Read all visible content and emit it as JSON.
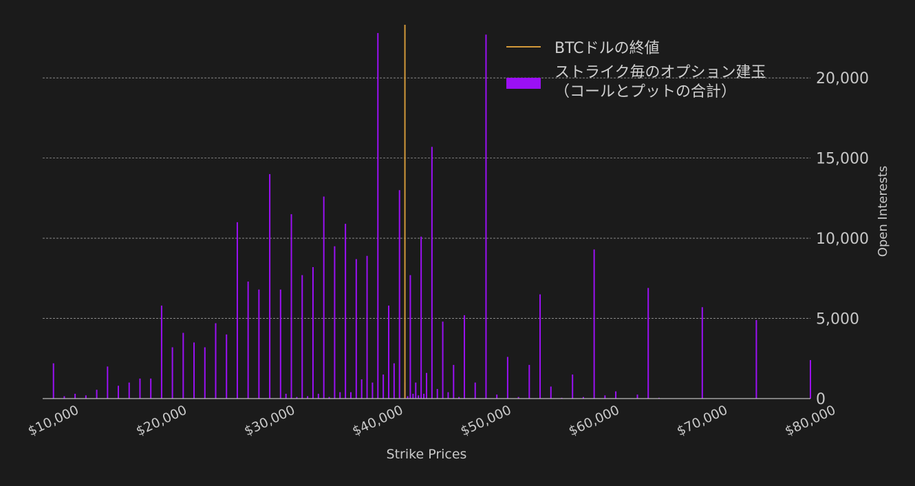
{
  "chart_data": {
    "type": "bar",
    "xlabel": "Strike Prices",
    "ylabel": "Open Interests",
    "xlim": [
      9000,
      80000
    ],
    "ylim": [
      0,
      24000
    ],
    "x_ticks": [
      10000,
      20000,
      30000,
      40000,
      50000,
      60000,
      70000,
      80000
    ],
    "x_tick_labels": [
      "$10,000",
      "$20,000",
      "$30,000",
      "$40,000",
      "$50,000",
      "$60,000",
      "$70,000",
      "$80,000"
    ],
    "y_ticks": [
      0,
      5000,
      10000,
      15000,
      20000
    ],
    "y_tick_labels": [
      "0",
      "5,000",
      "10,000",
      "15,000",
      "20,000"
    ],
    "y_axis_side": "right",
    "grid": "horizontal-dashed",
    "legend_position": "top-right",
    "legend": {
      "line_label": "BTCドルの終値",
      "bar_label_line1": "ストライク毎のオプション建玉",
      "bar_label_line2": "（コールとプットの合計）"
    },
    "reference_line": {
      "x": 42500,
      "color": "#d49a3a"
    },
    "bar_color": "#9b10f5",
    "line_color": "#d49a3a",
    "background": "#1b1b1b",
    "bars": [
      {
        "x": 10000,
        "y": 2200
      },
      {
        "x": 11000,
        "y": 150
      },
      {
        "x": 12000,
        "y": 300
      },
      {
        "x": 13000,
        "y": 200
      },
      {
        "x": 14000,
        "y": 550
      },
      {
        "x": 15000,
        "y": 2000
      },
      {
        "x": 16000,
        "y": 800
      },
      {
        "x": 17000,
        "y": 1000
      },
      {
        "x": 18000,
        "y": 1250
      },
      {
        "x": 19000,
        "y": 1250
      },
      {
        "x": 20000,
        "y": 5800
      },
      {
        "x": 21000,
        "y": 3200
      },
      {
        "x": 22000,
        "y": 4100
      },
      {
        "x": 23000,
        "y": 3500
      },
      {
        "x": 24000,
        "y": 3200
      },
      {
        "x": 25000,
        "y": 4700
      },
      {
        "x": 26000,
        "y": 4000
      },
      {
        "x": 27000,
        "y": 11000
      },
      {
        "x": 28000,
        "y": 7300
      },
      {
        "x": 29000,
        "y": 6800
      },
      {
        "x": 30000,
        "y": 14000
      },
      {
        "x": 31000,
        "y": 6800
      },
      {
        "x": 31500,
        "y": 300
      },
      {
        "x": 32000,
        "y": 11500
      },
      {
        "x": 32500,
        "y": 100
      },
      {
        "x": 33000,
        "y": 7700
      },
      {
        "x": 33500,
        "y": 150
      },
      {
        "x": 34000,
        "y": 8200
      },
      {
        "x": 34500,
        "y": 300
      },
      {
        "x": 35000,
        "y": 12600
      },
      {
        "x": 35500,
        "y": 100
      },
      {
        "x": 36000,
        "y": 9500
      },
      {
        "x": 36500,
        "y": 400
      },
      {
        "x": 37000,
        "y": 10900
      },
      {
        "x": 37500,
        "y": 400
      },
      {
        "x": 38000,
        "y": 8700
      },
      {
        "x": 38500,
        "y": 1200
      },
      {
        "x": 39000,
        "y": 8900
      },
      {
        "x": 39500,
        "y": 1000
      },
      {
        "x": 40000,
        "y": 22800
      },
      {
        "x": 40500,
        "y": 1500
      },
      {
        "x": 41000,
        "y": 5800
      },
      {
        "x": 41500,
        "y": 2200
      },
      {
        "x": 42000,
        "y": 13000
      },
      {
        "x": 42500,
        "y": 1000
      },
      {
        "x": 42750,
        "y": 150
      },
      {
        "x": 43000,
        "y": 7700
      },
      {
        "x": 43250,
        "y": 300
      },
      {
        "x": 43500,
        "y": 1000
      },
      {
        "x": 43750,
        "y": 200
      },
      {
        "x": 44000,
        "y": 10100
      },
      {
        "x": 44250,
        "y": 300
      },
      {
        "x": 44500,
        "y": 1600
      },
      {
        "x": 45000,
        "y": 15700
      },
      {
        "x": 45500,
        "y": 600
      },
      {
        "x": 46000,
        "y": 4800
      },
      {
        "x": 46500,
        "y": 400
      },
      {
        "x": 47000,
        "y": 2100
      },
      {
        "x": 47500,
        "y": 100
      },
      {
        "x": 48000,
        "y": 5200
      },
      {
        "x": 49000,
        "y": 1000
      },
      {
        "x": 50000,
        "y": 22700
      },
      {
        "x": 51000,
        "y": 250
      },
      {
        "x": 52000,
        "y": 2600
      },
      {
        "x": 53000,
        "y": 100
      },
      {
        "x": 54000,
        "y": 2100
      },
      {
        "x": 55000,
        "y": 6500
      },
      {
        "x": 56000,
        "y": 750
      },
      {
        "x": 57000,
        "y": 50
      },
      {
        "x": 58000,
        "y": 1500
      },
      {
        "x": 59000,
        "y": 100
      },
      {
        "x": 60000,
        "y": 9300
      },
      {
        "x": 61000,
        "y": 200
      },
      {
        "x": 62000,
        "y": 450
      },
      {
        "x": 64000,
        "y": 250
      },
      {
        "x": 65000,
        "y": 6900
      },
      {
        "x": 66000,
        "y": 50
      },
      {
        "x": 70000,
        "y": 5700
      },
      {
        "x": 75000,
        "y": 4900
      },
      {
        "x": 80000,
        "y": 2400
      }
    ]
  }
}
